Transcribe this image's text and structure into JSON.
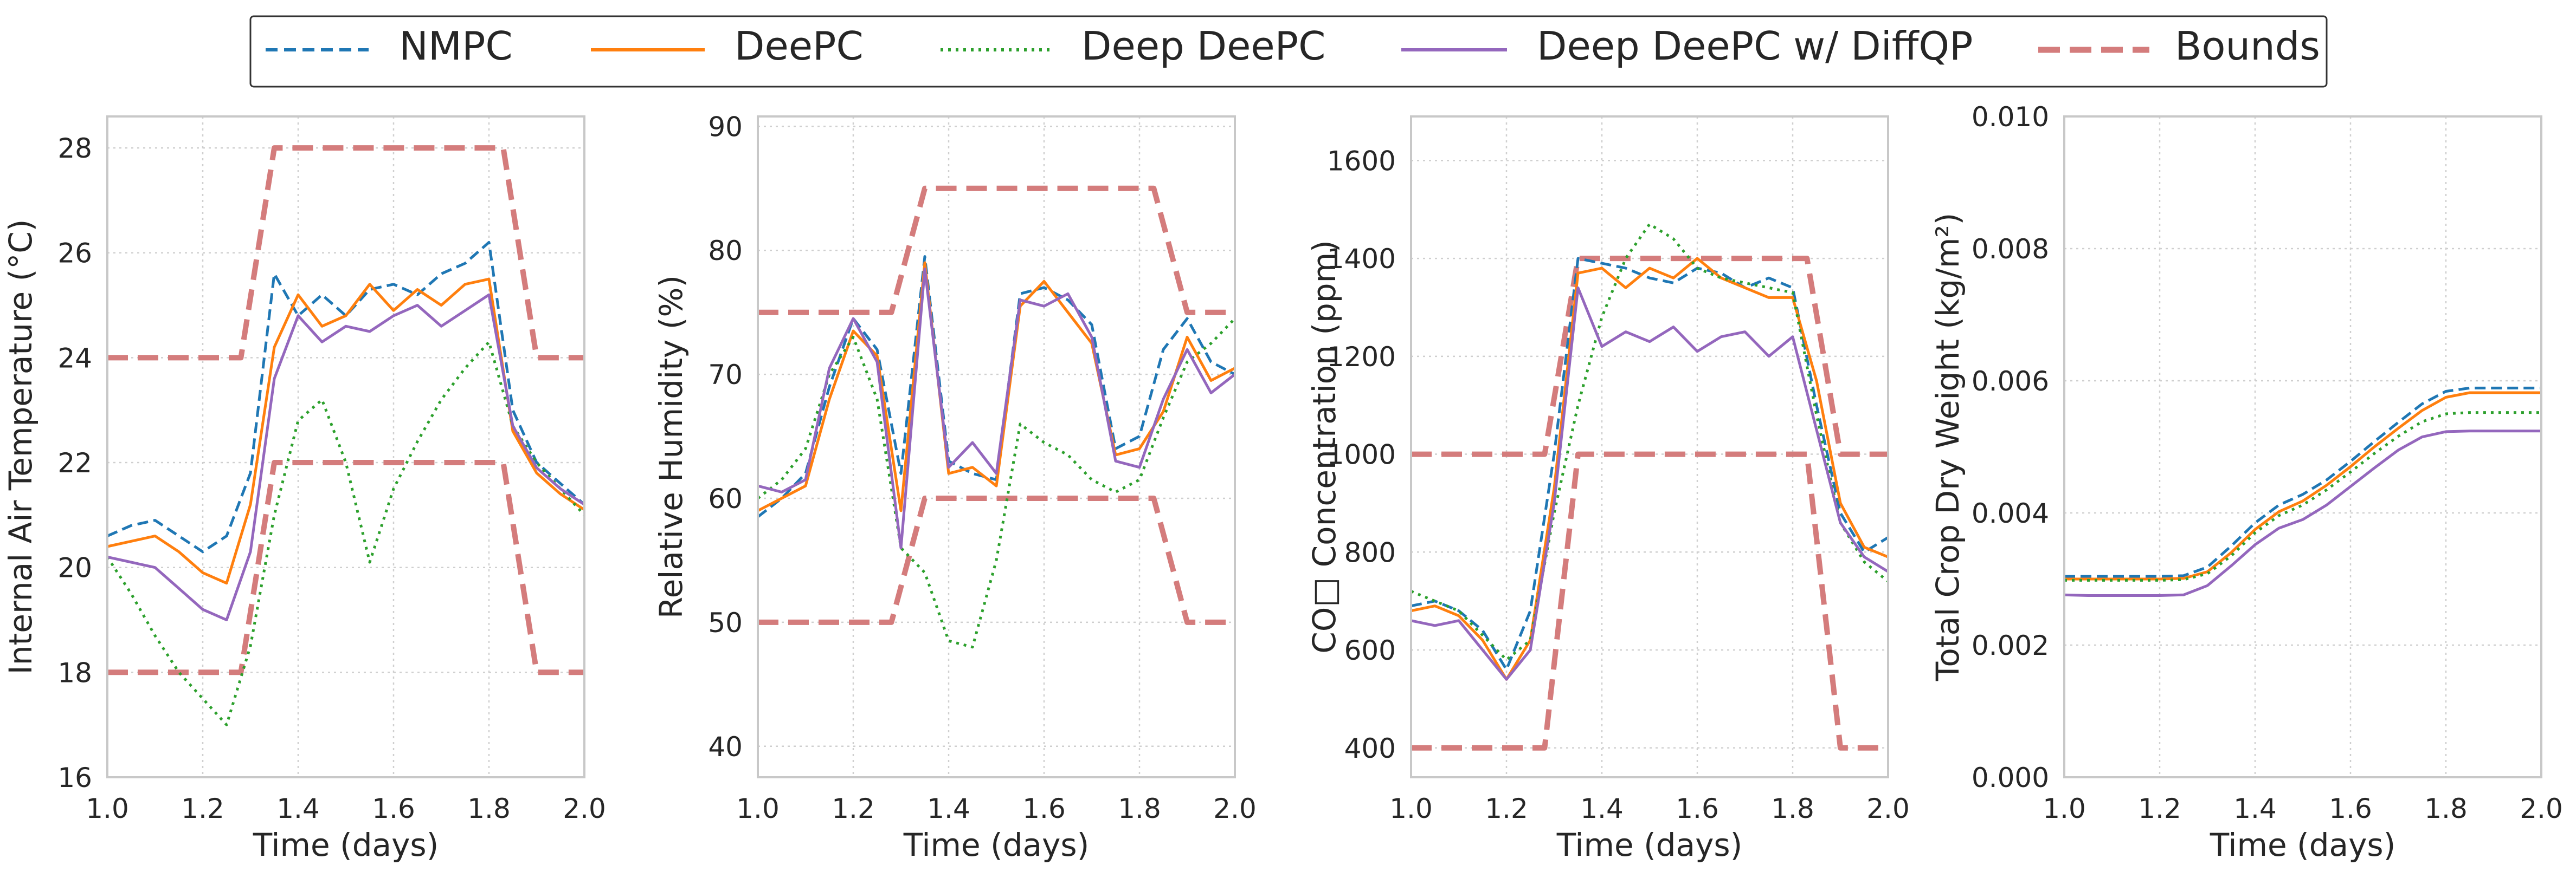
{
  "legend": {
    "placement": "top-center",
    "entries": [
      {
        "label": "NMPC",
        "color": "#1f77b4",
        "dash": "dashed"
      },
      {
        "label": "DeePC",
        "color": "#ff7f0e",
        "dash": "solid"
      },
      {
        "label": "Deep DeePC",
        "color": "#2ca02c",
        "dash": "dotted"
      },
      {
        "label": "Deep DeePC w/ DiffQP",
        "color": "#9467bd",
        "dash": "solid"
      },
      {
        "label": "Bounds",
        "color": "#d47c7c",
        "dash": "dashed-thick"
      }
    ]
  },
  "chart_data": [
    {
      "type": "line",
      "xlabel": "Time (days)",
      "ylabel": "Internal Air Temperature (°C)",
      "xlim": [
        1.0,
        2.0
      ],
      "ylim": [
        16,
        28.6
      ],
      "xticks": [
        1.0,
        1.2,
        1.4,
        1.6,
        1.8,
        2.0
      ],
      "yticks": [
        16,
        18,
        20,
        22,
        24,
        26,
        28
      ],
      "grid": true,
      "x": [
        1.0,
        1.05,
        1.1,
        1.15,
        1.2,
        1.25,
        1.3,
        1.35,
        1.4,
        1.45,
        1.5,
        1.55,
        1.6,
        1.65,
        1.7,
        1.75,
        1.8,
        1.85,
        1.9,
        1.95,
        2.0
      ],
      "series": [
        {
          "name": "NMPC",
          "values": [
            20.6,
            20.8,
            20.9,
            20.6,
            20.3,
            20.6,
            21.8,
            25.6,
            24.8,
            25.2,
            24.8,
            25.3,
            25.4,
            25.2,
            25.6,
            25.8,
            26.2,
            23.0,
            22.0,
            21.6,
            21.2
          ]
        },
        {
          "name": "DeePC",
          "values": [
            20.4,
            20.5,
            20.6,
            20.3,
            19.9,
            19.7,
            21.2,
            24.2,
            25.2,
            24.6,
            24.8,
            25.4,
            24.9,
            25.3,
            25.0,
            25.4,
            25.5,
            22.6,
            21.8,
            21.4,
            21.1
          ]
        },
        {
          "name": "Deep DeePC",
          "values": [
            20.2,
            19.5,
            18.7,
            18.0,
            17.5,
            17.0,
            18.5,
            21.0,
            22.8,
            23.2,
            22.0,
            20.1,
            21.5,
            22.4,
            23.2,
            23.8,
            24.3,
            22.7,
            22.0,
            21.5,
            21.0
          ]
        },
        {
          "name": "Deep DeePC w/ DiffQP",
          "values": [
            20.2,
            20.1,
            20.0,
            19.6,
            19.2,
            19.0,
            20.3,
            23.6,
            24.8,
            24.3,
            24.6,
            24.5,
            24.8,
            25.0,
            24.6,
            24.9,
            25.2,
            22.7,
            21.9,
            21.5,
            21.2
          ]
        }
      ],
      "bounds": [
        {
          "name": "upper",
          "x": [
            1.0,
            1.28,
            1.35,
            1.83,
            1.9,
            2.0
          ],
          "values": [
            24,
            24,
            28,
            28,
            24,
            24
          ]
        },
        {
          "name": "lower",
          "x": [
            1.0,
            1.28,
            1.35,
            1.83,
            1.9,
            2.0
          ],
          "values": [
            18,
            18,
            22,
            22,
            18,
            18
          ]
        }
      ]
    },
    {
      "type": "line",
      "xlabel": "Time (days)",
      "ylabel": "Relative Humidity (%)",
      "xlim": [
        1.0,
        2.0
      ],
      "ylim": [
        37.5,
        90.8
      ],
      "xticks": [
        1.0,
        1.2,
        1.4,
        1.6,
        1.8,
        2.0
      ],
      "yticks": [
        40,
        50,
        60,
        70,
        80,
        90
      ],
      "grid": true,
      "x": [
        1.0,
        1.05,
        1.1,
        1.15,
        1.2,
        1.25,
        1.3,
        1.35,
        1.4,
        1.45,
        1.5,
        1.55,
        1.6,
        1.65,
        1.7,
        1.75,
        1.8,
        1.85,
        1.9,
        1.95,
        2.0
      ],
      "series": [
        {
          "name": "NMPC",
          "values": [
            58.5,
            60.0,
            62.0,
            69.0,
            74.5,
            72.0,
            62.0,
            79.5,
            63.0,
            62.0,
            61.5,
            76.5,
            77.0,
            76.0,
            74.0,
            64.0,
            65.0,
            72.0,
            74.5,
            71.0,
            70.0
          ]
        },
        {
          "name": "DeePC",
          "values": [
            59.0,
            60.0,
            61.0,
            68.0,
            73.5,
            71.5,
            59.0,
            79.0,
            62.0,
            62.5,
            61.0,
            75.5,
            77.5,
            75.0,
            72.5,
            63.5,
            64.0,
            67.0,
            73.0,
            69.5,
            70.5
          ]
        },
        {
          "name": "Deep DeePC",
          "values": [
            60.0,
            61.5,
            64.0,
            70.0,
            73.0,
            68.0,
            56.0,
            54.0,
            48.5,
            48.0,
            55.0,
            66.0,
            64.5,
            63.5,
            61.5,
            60.5,
            61.5,
            66.5,
            71.0,
            72.5,
            74.5
          ]
        },
        {
          "name": "Deep DeePC w/ DiffQP",
          "values": [
            61.0,
            60.5,
            61.5,
            70.5,
            74.5,
            71.0,
            56.0,
            78.5,
            62.5,
            64.5,
            62.0,
            76.0,
            75.5,
            76.5,
            73.0,
            63.0,
            62.5,
            68.0,
            72.0,
            68.5,
            70.0
          ]
        }
      ],
      "bounds": [
        {
          "name": "upper",
          "x": [
            1.0,
            1.28,
            1.35,
            1.83,
            1.9,
            2.0
          ],
          "values": [
            75,
            75,
            85,
            85,
            75,
            75
          ]
        },
        {
          "name": "lower",
          "x": [
            1.0,
            1.28,
            1.35,
            1.83,
            1.9,
            2.0
          ],
          "values": [
            50,
            50,
            60,
            60,
            50,
            50
          ]
        }
      ]
    },
    {
      "type": "line",
      "xlabel": "Time (days)",
      "ylabel": "CO□ Concentration (ppm)",
      "xlim": [
        1.0,
        2.0
      ],
      "ylim": [
        340,
        1690
      ],
      "xticks": [
        1.0,
        1.2,
        1.4,
        1.6,
        1.8,
        2.0
      ],
      "yticks": [
        400,
        600,
        800,
        1000,
        1200,
        1400,
        1600
      ],
      "grid": true,
      "x": [
        1.0,
        1.05,
        1.1,
        1.15,
        1.2,
        1.25,
        1.3,
        1.35,
        1.4,
        1.45,
        1.5,
        1.55,
        1.6,
        1.65,
        1.7,
        1.75,
        1.8,
        1.85,
        1.9,
        1.95,
        2.0
      ],
      "series": [
        {
          "name": "NMPC",
          "values": [
            690,
            700,
            680,
            640,
            560,
            680,
            1000,
            1400,
            1390,
            1380,
            1360,
            1350,
            1380,
            1370,
            1340,
            1360,
            1340,
            1100,
            880,
            800,
            830
          ]
        },
        {
          "name": "DeePC",
          "values": [
            680,
            690,
            670,
            620,
            540,
            620,
            930,
            1370,
            1380,
            1340,
            1380,
            1360,
            1400,
            1360,
            1340,
            1320,
            1320,
            1150,
            900,
            810,
            790
          ]
        },
        {
          "name": "Deep DeePC",
          "values": [
            720,
            700,
            680,
            630,
            580,
            620,
            880,
            1100,
            1280,
            1400,
            1470,
            1440,
            1380,
            1360,
            1350,
            1340,
            1330,
            1080,
            860,
            780,
            740
          ]
        },
        {
          "name": "Deep DeePC w/ DiffQP",
          "values": [
            660,
            650,
            660,
            600,
            540,
            600,
            900,
            1340,
            1220,
            1250,
            1230,
            1260,
            1210,
            1240,
            1250,
            1200,
            1240,
            1050,
            860,
            790,
            760
          ]
        }
      ],
      "bounds": [
        {
          "name": "upper",
          "x": [
            1.0,
            1.28,
            1.35,
            1.83,
            1.9,
            2.0
          ],
          "values": [
            1000,
            1000,
            1400,
            1400,
            1000,
            1000
          ]
        },
        {
          "name": "lower",
          "x": [
            1.0,
            1.28,
            1.35,
            1.83,
            1.9,
            2.0
          ],
          "values": [
            400,
            400,
            1000,
            1000,
            400,
            400
          ]
        }
      ]
    },
    {
      "type": "line",
      "xlabel": "Time (days)",
      "ylabel": "Total Crop Dry Weight (kg/m²)",
      "xlim": [
        1.0,
        2.0
      ],
      "ylim": [
        0.0,
        0.01
      ],
      "xticks": [
        1.0,
        1.2,
        1.4,
        1.6,
        1.8,
        2.0
      ],
      "yticks": [
        0.0,
        0.002,
        0.004,
        0.006,
        0.008,
        0.01
      ],
      "grid": true,
      "x": [
        1.0,
        1.05,
        1.1,
        1.15,
        1.2,
        1.25,
        1.3,
        1.35,
        1.4,
        1.45,
        1.5,
        1.55,
        1.6,
        1.65,
        1.7,
        1.75,
        1.8,
        1.85,
        1.9,
        1.95,
        2.0
      ],
      "series": [
        {
          "name": "NMPC",
          "values": [
            0.00304,
            0.00304,
            0.00304,
            0.00304,
            0.00304,
            0.00305,
            0.00318,
            0.0035,
            0.00385,
            0.00412,
            0.00428,
            0.0045,
            0.00478,
            0.00508,
            0.00537,
            0.00565,
            0.00584,
            0.00589,
            0.00589,
            0.00589,
            0.00589
          ]
        },
        {
          "name": "DeePC",
          "values": [
            0.003,
            0.003,
            0.003,
            0.003,
            0.003,
            0.00301,
            0.00311,
            0.0034,
            0.00375,
            0.00402,
            0.00418,
            0.00442,
            0.0047,
            0.005,
            0.00528,
            0.00555,
            0.00575,
            0.00582,
            0.00582,
            0.00582,
            0.00582
          ]
        },
        {
          "name": "Deep DeePC",
          "values": [
            0.00298,
            0.00298,
            0.00298,
            0.00298,
            0.00298,
            0.00299,
            0.00308,
            0.00335,
            0.0037,
            0.00396,
            0.00412,
            0.00435,
            0.00462,
            0.0049,
            0.00516,
            0.00538,
            0.0055,
            0.00552,
            0.00552,
            0.00552,
            0.00552
          ]
        },
        {
          "name": "Deep DeePC w/ DiffQP",
          "values": [
            0.00276,
            0.00275,
            0.00275,
            0.00275,
            0.00275,
            0.00276,
            0.0029,
            0.0032,
            0.00352,
            0.00377,
            0.0039,
            0.00412,
            0.0044,
            0.00468,
            0.00495,
            0.00515,
            0.00523,
            0.00524,
            0.00524,
            0.00524,
            0.00524
          ]
        }
      ]
    }
  ]
}
